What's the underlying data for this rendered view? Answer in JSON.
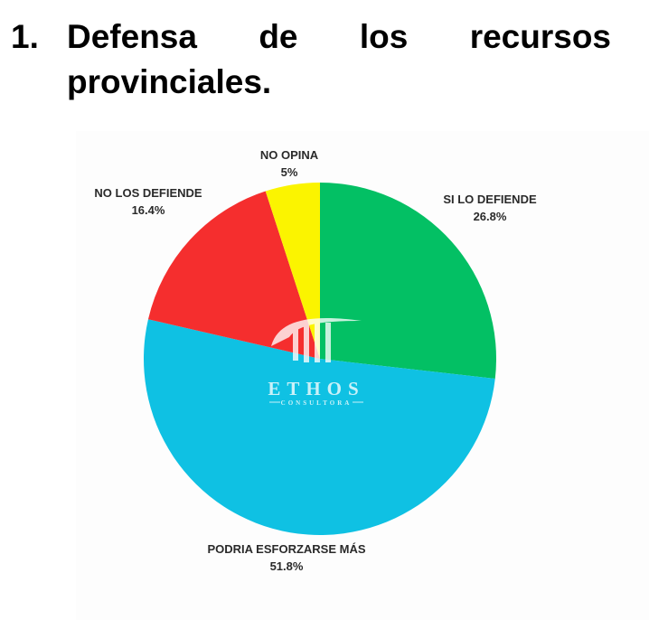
{
  "heading": {
    "number": "1.",
    "words": [
      "Defensa",
      "de",
      "los",
      "recursos"
    ],
    "line2": "provinciales."
  },
  "watermark": {
    "brand": "ETHOS",
    "sub": "CONSULTORA"
  },
  "chart_data": {
    "type": "pie",
    "title": "",
    "slices": [
      {
        "label": "SI LO DEFIENDE",
        "value": 26.8,
        "display": "26.8%",
        "color": "#03c064"
      },
      {
        "label": "PODRIA ESFORZARSE MÁS",
        "value": 51.8,
        "display": "51.8%",
        "color": "#0fc1e3"
      },
      {
        "label": "NO LOS DEFIENDE",
        "value": 16.4,
        "display": "16.4%",
        "color": "#f52e2e"
      },
      {
        "label": "NO OPINA",
        "value": 5,
        "display": "5%",
        "color": "#fbf400"
      }
    ]
  }
}
